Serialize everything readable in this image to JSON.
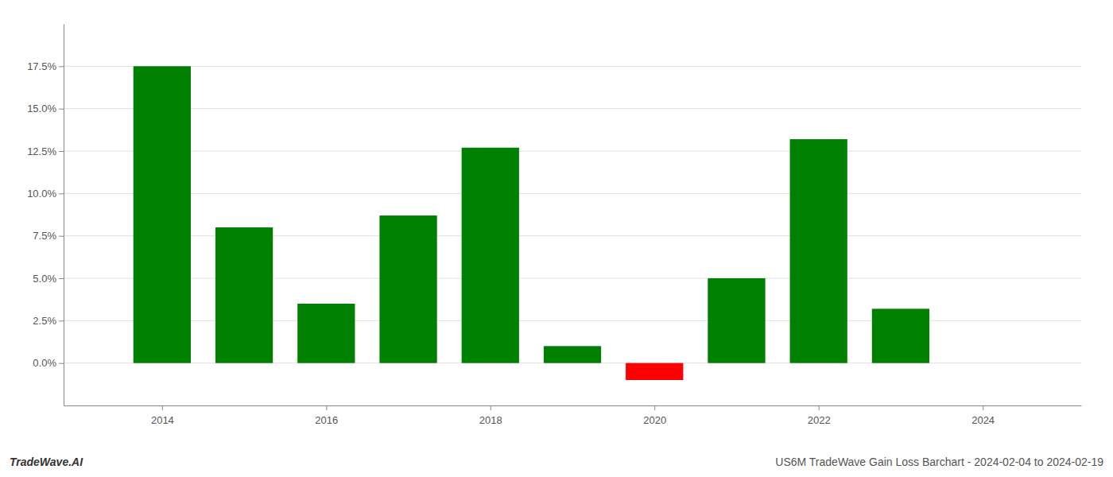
{
  "chart_data": {
    "type": "bar",
    "x": [
      2014,
      2015,
      2016,
      2017,
      2018,
      2019,
      2020,
      2021,
      2022,
      2023
    ],
    "values": [
      0.175,
      0.08,
      0.035,
      0.087,
      0.127,
      0.01,
      -0.01,
      0.05,
      0.132,
      0.032
    ],
    "colors": [
      "#008000",
      "#008000",
      "#008000",
      "#008000",
      "#008000",
      "#008000",
      "#ff0000",
      "#008000",
      "#008000",
      "#008000"
    ],
    "xlim": [
      2012.8,
      2025.2
    ],
    "xticks": [
      2014,
      2016,
      2018,
      2020,
      2022,
      2024
    ],
    "ylim": [
      -0.025,
      0.2
    ],
    "yticks": [
      {
        "value": 0.0,
        "label": "0.0%"
      },
      {
        "value": 0.025,
        "label": "2.5%"
      },
      {
        "value": 0.05,
        "label": "5.0%"
      },
      {
        "value": 0.075,
        "label": "7.5%"
      },
      {
        "value": 0.1,
        "label": "10.0%"
      },
      {
        "value": 0.125,
        "label": "12.5%"
      },
      {
        "value": 0.15,
        "label": "15.0%"
      },
      {
        "value": 0.175,
        "label": "17.5%"
      }
    ],
    "grid": true,
    "annotations": [
      "TradeWave.AI",
      "US6M TradeWave Gain Loss Barchart - 2024-02-04 to 2024-02-19"
    ]
  }
}
